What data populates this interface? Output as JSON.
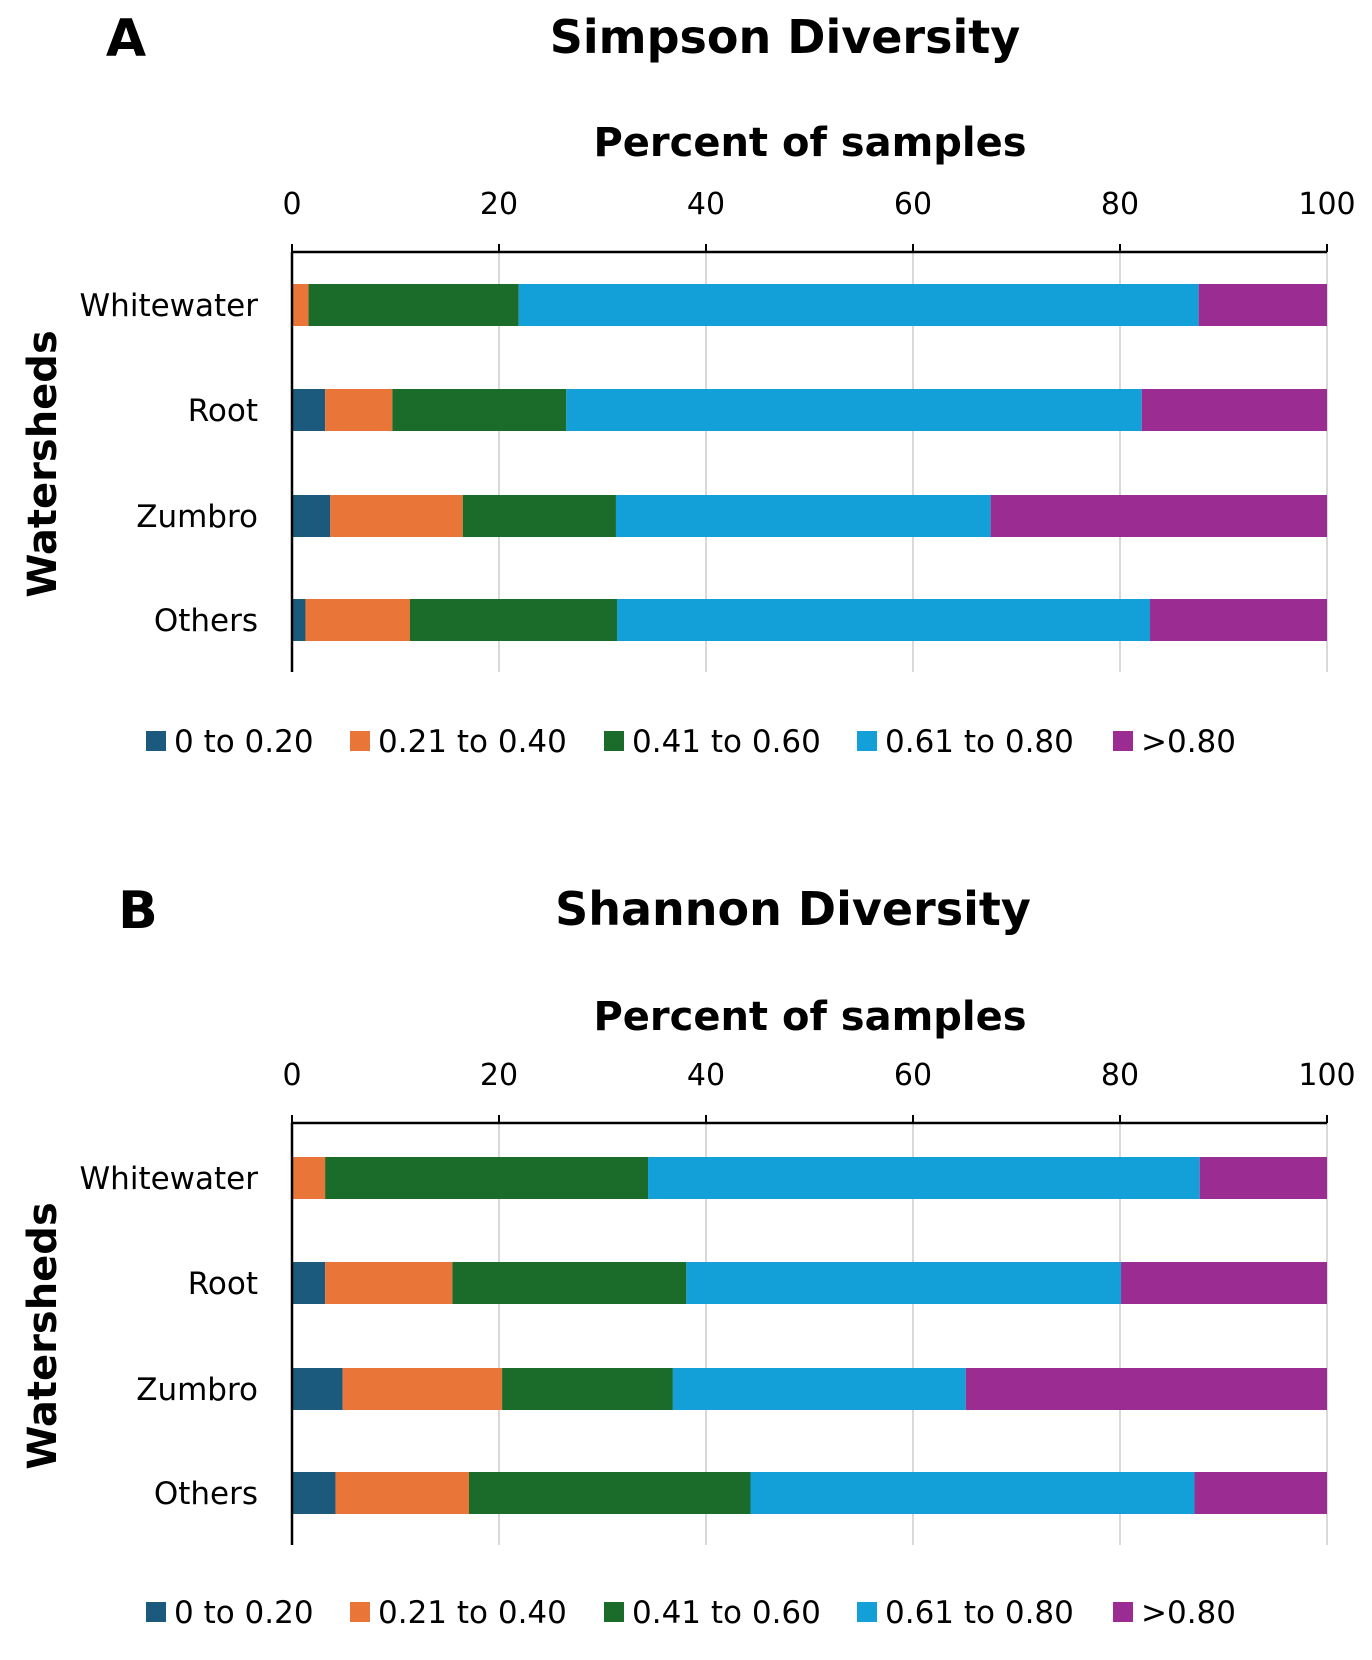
{
  "colors": {
    "0 to 0.20": "#1b5a7c",
    "0.21 to 0.40": "#e97638",
    "0.41 to 0.60": "#1b6b2a",
    "0.61 to 0.80": "#13a0d8",
    ">0.80": "#9b2c91",
    "grid": "#d9d9d9",
    "axis": "#000000"
  },
  "chart_data": [
    {
      "panel": "A",
      "type": "bar",
      "orientation": "horizontal",
      "stacked": true,
      "title": "Simpson Diversity",
      "xlabel": "Percent of samples",
      "ylabel": "Watersheds",
      "xlim": [
        0,
        100
      ],
      "xticks": [
        "0",
        "20",
        "40",
        "60",
        "80",
        "100"
      ],
      "xtick_values": [
        0,
        20,
        40,
        60,
        80,
        100
      ],
      "grid": true,
      "categories": [
        "Whitewater",
        "Root",
        "Zumbro",
        "Others"
      ],
      "series": [
        {
          "name": "0 to 0.20",
          "values": [
            0,
            3.2,
            3.7,
            1.3
          ]
        },
        {
          "name": "0.21 to 0.40",
          "values": [
            1.6,
            6.5,
            12.8,
            10.1
          ]
        },
        {
          "name": "0.41 to 0.60",
          "values": [
            20.3,
            16.8,
            14.8,
            20.0
          ]
        },
        {
          "name": "0.61 to 0.80",
          "values": [
            65.7,
            55.6,
            36.2,
            51.5
          ]
        },
        {
          "name": ">0.80",
          "values": [
            12.4,
            17.9,
            32.5,
            17.1
          ]
        }
      ],
      "legend": [
        "0 to 0.20",
        "0.21 to 0.40",
        "0.41 to 0.60",
        "0.61 to 0.80",
        ">0.80"
      ],
      "legend_position": "bottom"
    },
    {
      "panel": "B",
      "type": "bar",
      "orientation": "horizontal",
      "stacked": true,
      "title": "Shannon Diversity",
      "xlabel": "Percent of samples",
      "ylabel": "Watersheds",
      "xlim": [
        0,
        100
      ],
      "xticks": [
        "0",
        "20",
        "40",
        "60",
        "80",
        "100"
      ],
      "xtick_values": [
        0,
        20,
        40,
        60,
        80,
        100
      ],
      "grid": true,
      "categories": [
        "Whitewater",
        "Root",
        "Zumbro",
        "Others"
      ],
      "series": [
        {
          "name": "0 to 0.20",
          "values": [
            0,
            3.2,
            4.9,
            4.2
          ]
        },
        {
          "name": "0.21 to 0.40",
          "values": [
            3.2,
            12.3,
            15.4,
            12.9
          ]
        },
        {
          "name": "0.41 to 0.60",
          "values": [
            31.2,
            22.6,
            16.5,
            27.2
          ]
        },
        {
          "name": "0.61 to 0.80",
          "values": [
            53.3,
            42.0,
            28.3,
            42.9
          ]
        },
        {
          "name": ">0.80",
          "values": [
            12.3,
            19.9,
            34.9,
            12.8
          ]
        }
      ],
      "legend": [
        "0 to 0.20",
        "0.21 to 0.40",
        "0.41 to 0.60",
        "0.61 to 0.80",
        ">0.80"
      ],
      "legend_position": "bottom"
    }
  ]
}
